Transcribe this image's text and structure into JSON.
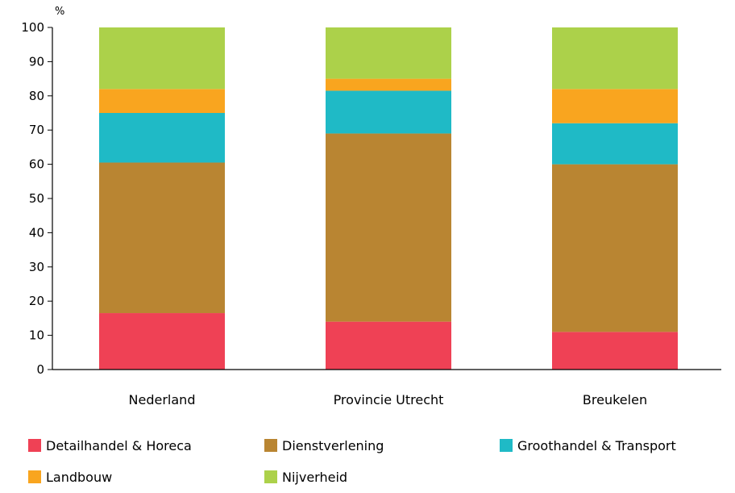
{
  "chart_data": {
    "type": "bar",
    "stacked": true,
    "title": "",
    "xlabel": "",
    "ylabel": "%",
    "ylim": [
      0,
      100
    ],
    "yticks": [
      0,
      10,
      20,
      30,
      40,
      50,
      60,
      70,
      80,
      90,
      100
    ],
    "grid": false,
    "legend_position": "bottom",
    "categories": [
      "Nederland",
      "Provincie Utrecht",
      "Breukelen"
    ],
    "series": [
      {
        "name": "Detailhandel & Horeca",
        "color": "#ef4155",
        "values": [
          16.5,
          14,
          11
        ]
      },
      {
        "name": "Dienstverlening",
        "color": "#b98532",
        "values": [
          44,
          55,
          49
        ]
      },
      {
        "name": "Groothandel & Transport",
        "color": "#1fbac6",
        "values": [
          14.5,
          12.5,
          12
        ]
      },
      {
        "name": "Landbouw",
        "color": "#f9a51f",
        "values": [
          7,
          3.5,
          10
        ]
      },
      {
        "name": "Nijverheid",
        "color": "#acd14a",
        "values": [
          18,
          15,
          18
        ]
      }
    ]
  }
}
